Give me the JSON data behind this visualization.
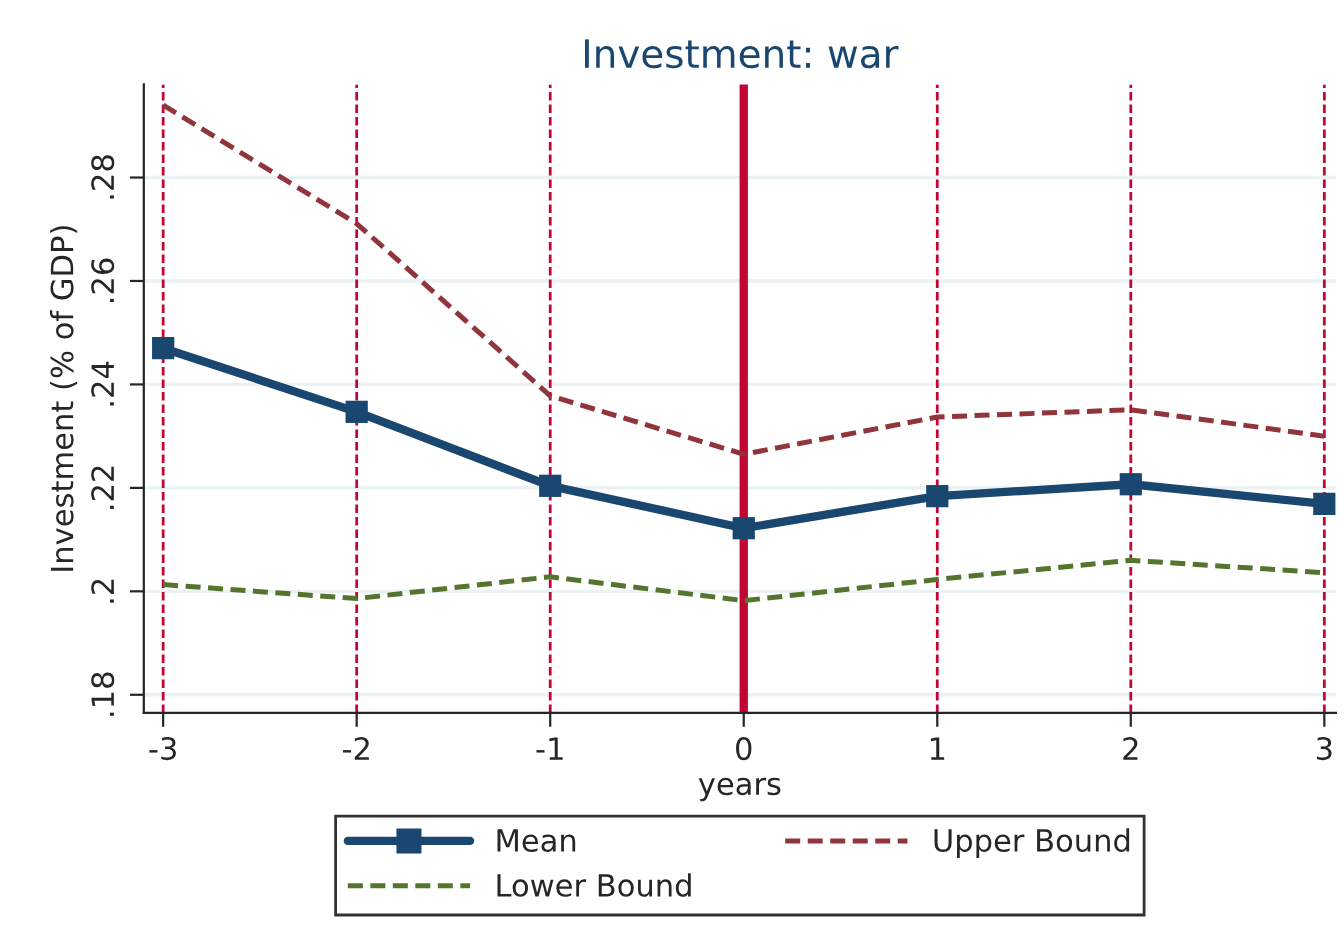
{
  "chart_data": {
    "type": "line",
    "title": "Investment: war",
    "xlabel": "years",
    "ylabel": "Investment (% of GDP)",
    "x": [
      -3,
      -2,
      -1,
      0,
      1,
      2,
      3
    ],
    "series": [
      {
        "name": "Mean",
        "color": "#1a476f",
        "marker": "square",
        "line_style": "solid",
        "values": [
          0.247,
          0.2347,
          0.2204,
          0.2122,
          0.2184,
          0.2207,
          0.2169
        ]
      },
      {
        "name": "Lower Bound",
        "color": "#55752f",
        "marker": "none",
        "line_style": "dashed",
        "values": [
          0.2013,
          0.1986,
          0.2028,
          0.1982,
          0.2023,
          0.206,
          0.2036
        ]
      },
      {
        "name": "Upper Bound",
        "color": "#90353b",
        "marker": "none",
        "line_style": "dashed",
        "values": [
          0.294,
          0.2711,
          0.2378,
          0.2265,
          0.2337,
          0.2351,
          0.23
        ]
      }
    ],
    "xlim": [
      -3.1,
      3.06
    ],
    "ylim": [
      0.1765,
      0.298
    ],
    "xticks": [
      -3,
      -2,
      -1,
      0,
      1,
      2,
      3
    ],
    "yticks": [
      {
        "value": 0.18,
        "label": ".18"
      },
      {
        "value": 0.2,
        "label": ".2"
      },
      {
        "value": 0.22,
        "label": ".22"
      },
      {
        "value": 0.24,
        "label": ".24"
      },
      {
        "value": 0.26,
        "label": ".26"
      },
      {
        "value": 0.28,
        "label": ".28"
      }
    ],
    "ref_lines": [
      {
        "axis": "x",
        "value": -3,
        "color": "#c10534",
        "line_style": "dashed"
      },
      {
        "axis": "x",
        "value": -2,
        "color": "#c10534",
        "line_style": "dashed"
      },
      {
        "axis": "x",
        "value": -1,
        "color": "#c10534",
        "line_style": "dashed"
      },
      {
        "axis": "x",
        "value": 0,
        "color": "#c10534",
        "line_style": "solid"
      },
      {
        "axis": "x",
        "value": 1,
        "color": "#c10534",
        "line_style": "dashed"
      },
      {
        "axis": "x",
        "value": 2,
        "color": "#c10534",
        "line_style": "dashed"
      },
      {
        "axis": "x",
        "value": 3,
        "color": "#c10534",
        "line_style": "dashed"
      }
    ],
    "grid": "y",
    "legend": "bottom"
  }
}
